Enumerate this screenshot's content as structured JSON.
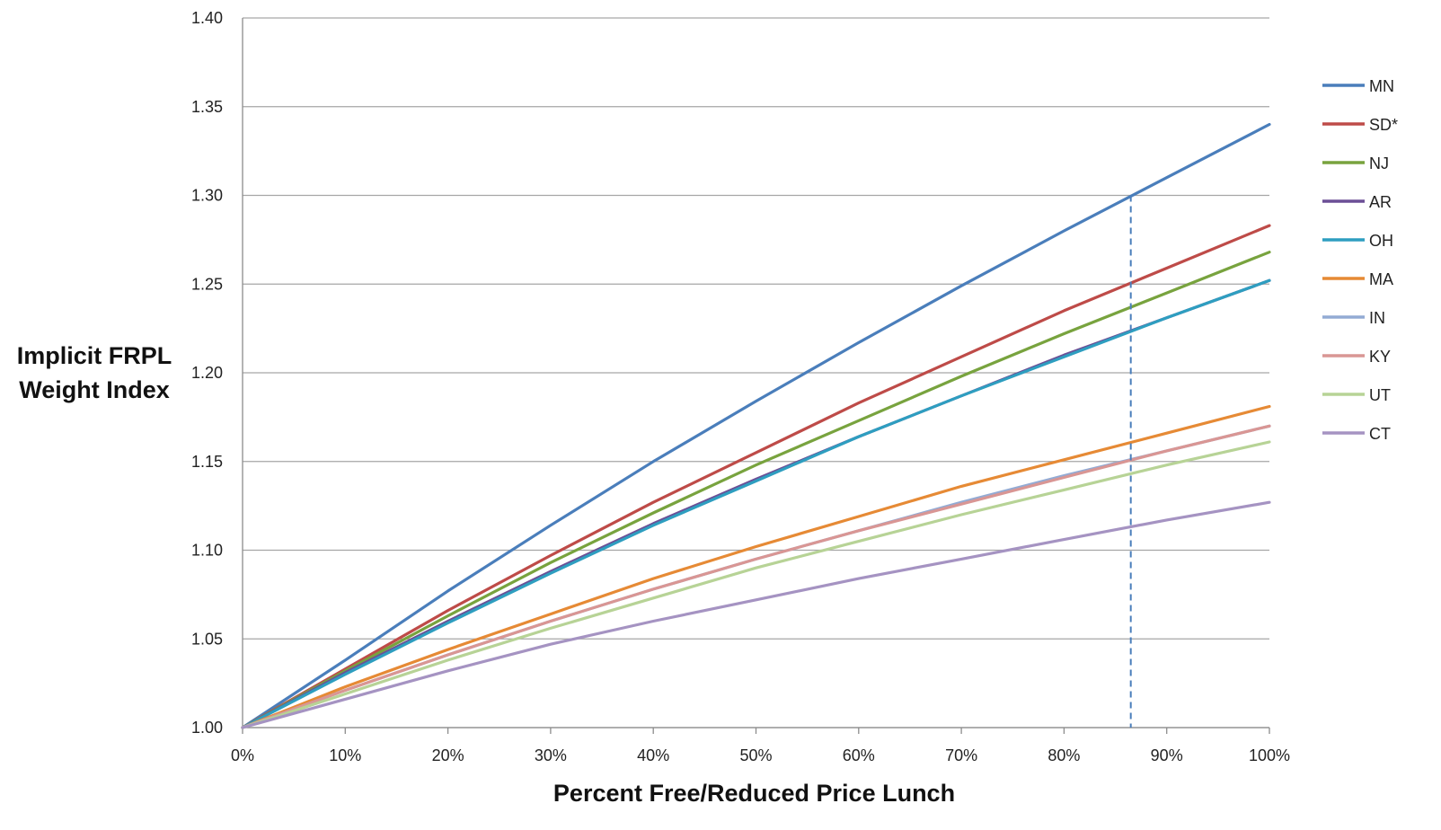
{
  "chart_data": {
    "type": "line",
    "title": "",
    "xlabel": "Percent Free/Reduced Price Lunch",
    "ylabel": [
      "Implicit FRPL",
      "Weight Index"
    ],
    "xlim": [
      0,
      1
    ],
    "ylim": [
      1.0,
      1.4
    ],
    "x_ticks": [
      0,
      0.1,
      0.2,
      0.3,
      0.4,
      0.5,
      0.6,
      0.7,
      0.8,
      0.9,
      1.0
    ],
    "x_tick_labels": [
      "0%",
      "10%",
      "20%",
      "30%",
      "40%",
      "50%",
      "60%",
      "70%",
      "80%",
      "90%",
      "100%"
    ],
    "y_ticks": [
      1.0,
      1.05,
      1.1,
      1.15,
      1.2,
      1.25,
      1.3,
      1.35,
      1.4
    ],
    "y_tick_labels": [
      "1.00",
      "1.05",
      "1.10",
      "1.15",
      "1.20",
      "1.25",
      "1.30",
      "1.35",
      "1.40"
    ],
    "grid": "horizontal",
    "legend_position": "right",
    "x": [
      0,
      0.1,
      0.2,
      0.3,
      0.4,
      0.5,
      0.6,
      0.7,
      0.8,
      0.9,
      1.0
    ],
    "series": [
      {
        "name": "MN",
        "color": "#4a7ebb",
        "values": [
          1.0,
          1.038,
          1.077,
          1.114,
          1.15,
          1.184,
          1.217,
          1.249,
          1.28,
          1.31,
          1.34
        ]
      },
      {
        "name": "SD*",
        "color": "#be4b48",
        "values": [
          1.0,
          1.033,
          1.066,
          1.097,
          1.127,
          1.155,
          1.183,
          1.209,
          1.235,
          1.259,
          1.283
        ]
      },
      {
        "name": "NJ",
        "color": "#78a33e",
        "values": [
          1.0,
          1.032,
          1.063,
          1.093,
          1.121,
          1.148,
          1.173,
          1.198,
          1.222,
          1.245,
          1.268
        ]
      },
      {
        "name": "AR",
        "color": "#6b4f96",
        "values": [
          1.0,
          1.031,
          1.06,
          1.088,
          1.115,
          1.14,
          1.164,
          1.187,
          1.21,
          1.231,
          1.252
        ]
      },
      {
        "name": "OH",
        "color": "#2e9ec0",
        "values": [
          1.0,
          1.03,
          1.059,
          1.087,
          1.114,
          1.139,
          1.164,
          1.187,
          1.209,
          1.231,
          1.252
        ]
      },
      {
        "name": "MA",
        "color": "#e68a35",
        "values": [
          1.0,
          1.023,
          1.044,
          1.064,
          1.084,
          1.102,
          1.119,
          1.136,
          1.151,
          1.166,
          1.181
        ]
      },
      {
        "name": "IN",
        "color": "#93abd4",
        "values": [
          1.0,
          1.021,
          1.041,
          1.06,
          1.078,
          1.095,
          1.111,
          1.127,
          1.142,
          1.156,
          1.17
        ]
      },
      {
        "name": "KY",
        "color": "#d99694",
        "values": [
          1.0,
          1.021,
          1.041,
          1.06,
          1.078,
          1.095,
          1.111,
          1.126,
          1.141,
          1.156,
          1.17
        ]
      },
      {
        "name": "UT",
        "color": "#b7d396",
        "values": [
          1.0,
          1.019,
          1.038,
          1.056,
          1.073,
          1.09,
          1.105,
          1.12,
          1.134,
          1.148,
          1.161
        ]
      },
      {
        "name": "CT",
        "color": "#a593c2",
        "values": [
          1.0,
          1.016,
          1.032,
          1.047,
          1.06,
          1.072,
          1.084,
          1.095,
          1.106,
          1.117,
          1.127
        ]
      }
    ],
    "reference_line": {
      "x": 0.865,
      "y_top": 1.3,
      "color": "#4a7ebb",
      "style": "dashed"
    }
  }
}
